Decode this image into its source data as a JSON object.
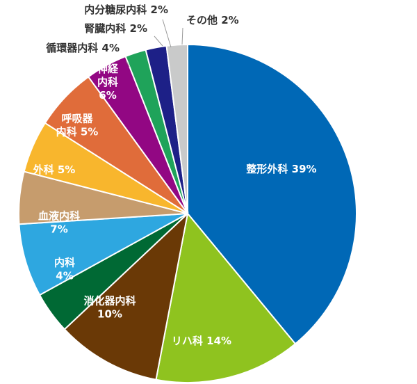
{
  "chart_data": {
    "type": "pie",
    "title": "",
    "start": "top",
    "direction": "clockwise",
    "slices": [
      {
        "label": "整形外科",
        "value": 39,
        "text": "整形外科 39%",
        "color": "#0068b6",
        "label_pos": "inside"
      },
      {
        "label": "リハ科",
        "value": 14,
        "text": "リハ科 14%",
        "color": "#8fc31f",
        "label_pos": "inside"
      },
      {
        "label": "消化器内科",
        "value": 10,
        "text": "消化器内科 10%",
        "color": "#6a3906",
        "label_pos": "inside"
      },
      {
        "label": "内科",
        "value": 4,
        "text": "内科 4%",
        "color": "#006934",
        "label_pos": "inside"
      },
      {
        "label": "血液内科",
        "value": 7,
        "text": "血液内科 7%",
        "color": "#2ea7e0",
        "label_pos": "inside"
      },
      {
        "label": "外科",
        "value": 5,
        "text": "外科 5%",
        "color": "#c69c6d",
        "label_pos": "inside"
      },
      {
        "label": "呼吸器内科",
        "value": 5,
        "text": "呼吸器 内科 5%",
        "color": "#f8b62d",
        "label_pos": "inside"
      },
      {
        "label": "神経内科",
        "value": 6,
        "text": "神経 内科 6%",
        "color": "#e06c3a",
        "label_pos": "inside"
      },
      {
        "label": "循環器内科",
        "value": 4,
        "text": "循環器内科 4%",
        "color": "#920783",
        "label_pos": "outside"
      },
      {
        "label": "内分糖尿内科",
        "value": 2,
        "text": "内分糖尿内科 2%",
        "color": "#1fa35a",
        "label_pos": "outside"
      },
      {
        "label": "腎臓内科",
        "value": 2,
        "text": "腎臓内科 2%",
        "color": "#1d2087",
        "label_pos": "outside"
      },
      {
        "label": "その他",
        "value": 2,
        "text": "その他 2%",
        "color": "#c9caca",
        "label_pos": "outside"
      }
    ]
  }
}
